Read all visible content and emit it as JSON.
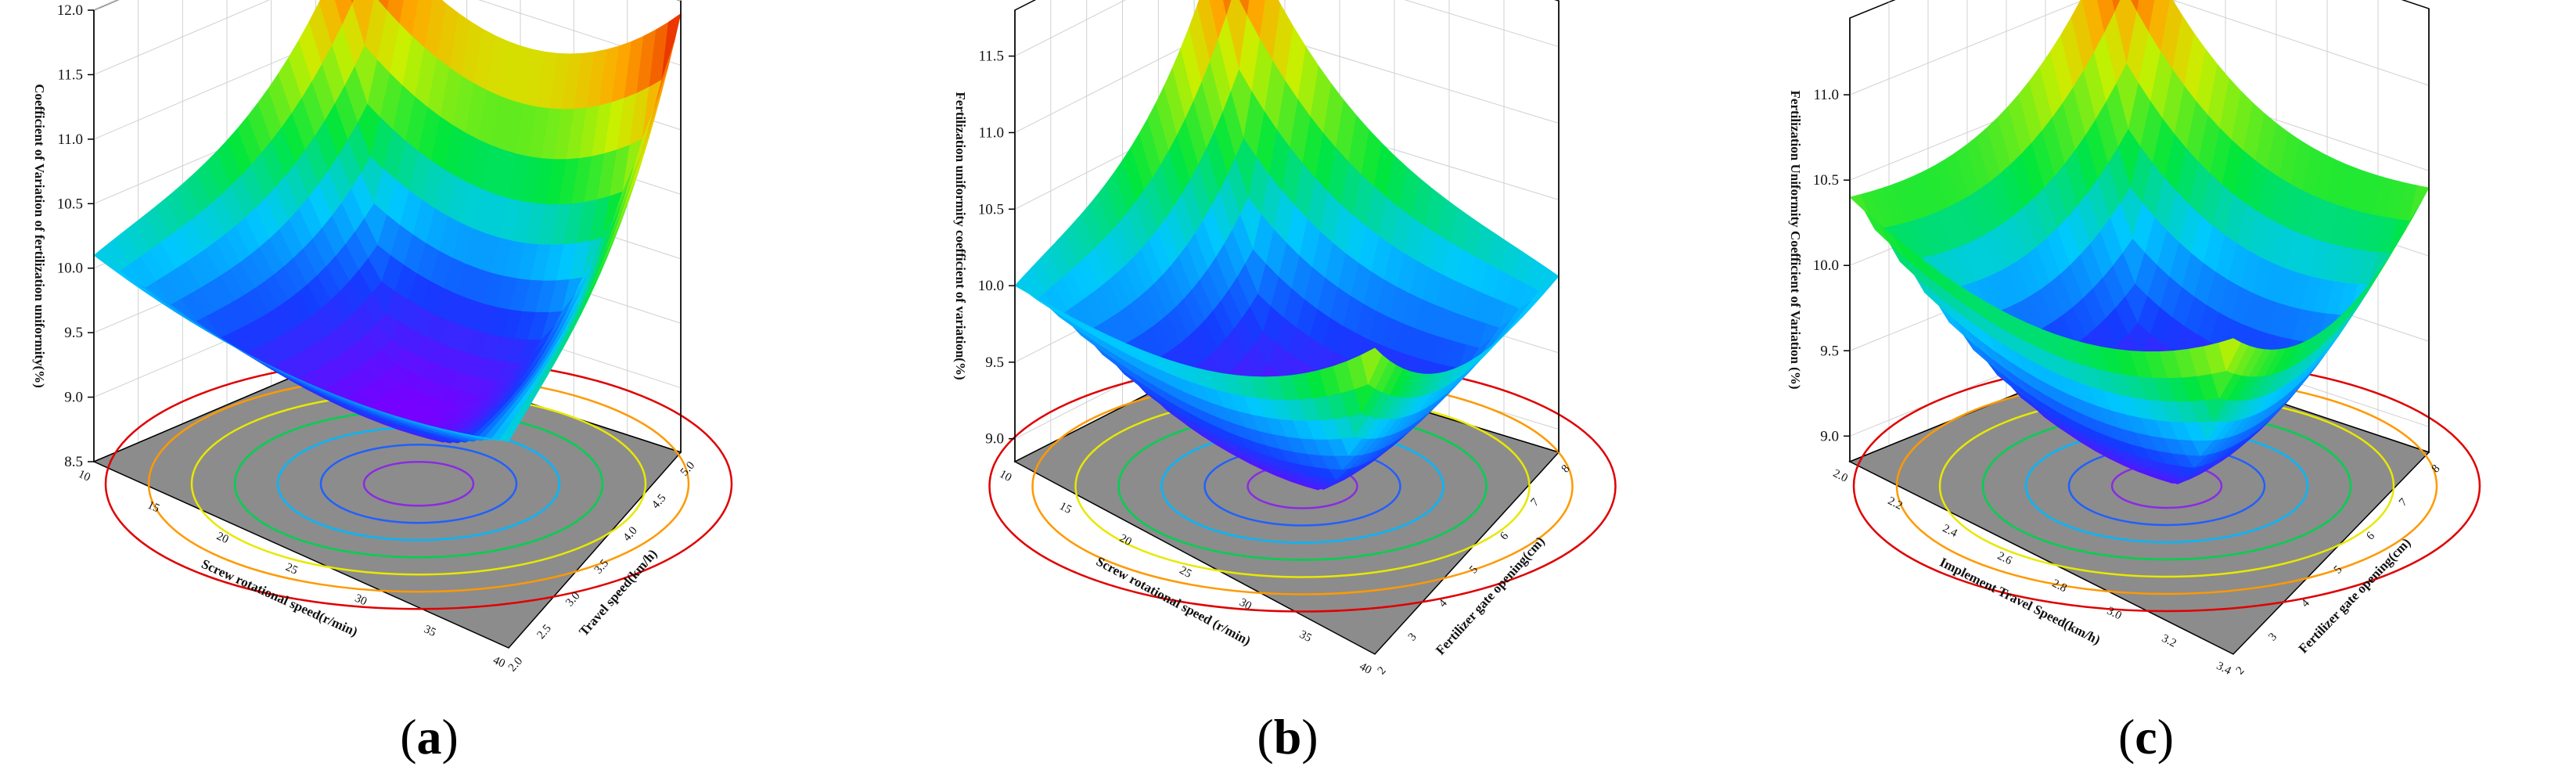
{
  "chart_data": [
    {
      "type": "surface3d",
      "panel_label": "a",
      "zlabel": "Coefficient of Variation of fertilization uniformity(%)",
      "xlabel": "Screw rotational speed(r/min)",
      "ylabel": "Travel speed(km/h)",
      "z_ticks": [
        "8.5",
        "9.0",
        "9.5",
        "10.0",
        "10.5",
        "11.0",
        "11.5",
        "12.0"
      ],
      "x_ticks": [
        "10",
        "15",
        "20",
        "25",
        "30",
        "35",
        "40"
      ],
      "y_ticks": [
        "2.0",
        "2.5",
        "3.0",
        "3.5",
        "4.0",
        "4.5",
        "5.0"
      ],
      "zlim": [
        8.5,
        12.0
      ],
      "surface": {
        "z_min": 9.0,
        "corners": {
          "back_left": 11.9,
          "back_right": 11.9,
          "front_left": 10.1,
          "front_right": 10.1,
          "left_mid": 10.3,
          "right_mid": 10.3
        }
      }
    },
    {
      "type": "surface3d",
      "panel_label": "b",
      "zlabel": "Fertilization uniformity coefficient of variation(%)",
      "xlabel": "Screw rotational speed (r/min)",
      "ylabel": "Fertilizer gate opening(cm)",
      "z_ticks": [
        "9.0",
        "9.5",
        "10.0",
        "10.5",
        "11.0",
        "11.5"
      ],
      "x_ticks": [
        "10",
        "15",
        "20",
        "25",
        "30",
        "35",
        "40"
      ],
      "y_ticks": [
        "2",
        "3",
        "4",
        "5",
        "6",
        "7",
        "8"
      ],
      "zlim": [
        8.85,
        11.8
      ],
      "surface": {
        "z_min": 8.95,
        "corners": {
          "back_left": 11.8,
          "back_right": 10.0,
          "front_left": 10.0,
          "front_right": 10.85,
          "left_mid": 9.9,
          "right_mid": 9.9
        }
      }
    },
    {
      "type": "surface3d",
      "panel_label": "c",
      "zlabel": "Fertilization Uniformity Coefficient of Variation (%)",
      "xlabel": "Implement Travel Speed(km/h)",
      "ylabel": "Fertilizer gate opening(cm)",
      "z_ticks": [
        "9.0",
        "9.5",
        "10.0",
        "10.5",
        "11.0"
      ],
      "x_ticks": [
        "2.0",
        "2.2",
        "2.4",
        "2.6",
        "2.8",
        "3.0",
        "3.2",
        "3.4"
      ],
      "y_ticks": [
        "2",
        "3",
        "4",
        "5",
        "6",
        "7",
        "8"
      ],
      "zlim": [
        8.85,
        11.45
      ],
      "surface": {
        "z_min": 8.95,
        "corners": {
          "back_left": 11.45,
          "back_right": 10.4,
          "front_left": 10.4,
          "front_right": 10.7,
          "left_mid": 10.3,
          "right_mid": 10.4
        }
      }
    }
  ],
  "colors": {
    "floor": "#8c8c8c",
    "grid": "#d0d0d0",
    "axis": "#000000"
  }
}
